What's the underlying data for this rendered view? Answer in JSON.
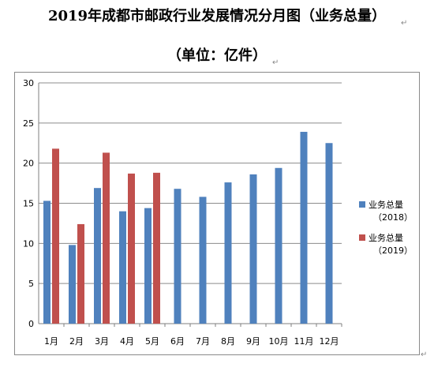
{
  "header": {
    "title": "2019年成都市邮政行业发展情况分月图（业务总量）",
    "subtitle": "（单位：亿件）",
    "return_mark": "↵"
  },
  "colors": {
    "series_2018": "#4f81bd",
    "series_2019": "#c0504d",
    "grid": "#8c8c8c",
    "axis": "#7f7f7f"
  },
  "chart_data": {
    "type": "bar",
    "title": "2019年成都市邮政行业发展情况分月图（业务总量）",
    "subtitle": "（单位：亿件）",
    "categories": [
      "1月",
      "2月",
      "3月",
      "4月",
      "5月",
      "6月",
      "7月",
      "8月",
      "9月",
      "10月",
      "11月",
      "12月"
    ],
    "series": [
      {
        "name": "业务总量",
        "name_sub": "（2018）",
        "values": [
          15.3,
          9.8,
          16.9,
          14.0,
          14.4,
          16.8,
          15.8,
          17.6,
          18.6,
          19.4,
          23.9,
          22.5
        ]
      },
      {
        "name": "业务总量",
        "name_sub": "（2019）",
        "values": [
          21.8,
          12.4,
          21.3,
          18.7,
          18.8,
          null,
          null,
          null,
          null,
          null,
          null,
          null
        ]
      }
    ],
    "ylim": [
      0,
      30
    ],
    "yticks": [
      0,
      5,
      10,
      15,
      20,
      25,
      30
    ],
    "grid": true,
    "legend_position": "right"
  }
}
